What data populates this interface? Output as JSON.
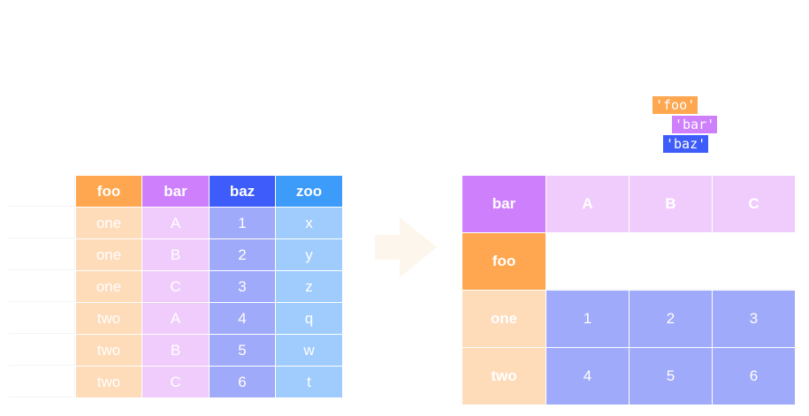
{
  "source_table": {
    "columns": [
      "foo",
      "bar",
      "baz",
      "zoo"
    ],
    "rows": [
      [
        "one",
        "A",
        "1",
        "x"
      ],
      [
        "one",
        "B",
        "2",
        "y"
      ],
      [
        "one",
        "C",
        "3",
        "z"
      ],
      [
        "two",
        "A",
        "4",
        "q"
      ],
      [
        "two",
        "B",
        "5",
        "w"
      ],
      [
        "two",
        "C",
        "6",
        "t"
      ]
    ]
  },
  "code_labels": {
    "index": "'foo'",
    "columns": "'bar'",
    "values": "'baz'"
  },
  "pivot_table": {
    "columns_name": "bar",
    "index_name": "foo",
    "columns": [
      "A",
      "B",
      "C"
    ],
    "rows": [
      {
        "label": "one",
        "values": [
          "1",
          "2",
          "3"
        ]
      },
      {
        "label": "two",
        "values": [
          "4",
          "5",
          "6"
        ]
      }
    ]
  },
  "colors": {
    "foo": "#fea750",
    "bar": "#ce80fc",
    "baz": "#3d5cf9",
    "zoo": "#3d9cf9",
    "arrow": "#fdf6ec"
  },
  "icons": {
    "arrow": "right-arrow-icon"
  }
}
